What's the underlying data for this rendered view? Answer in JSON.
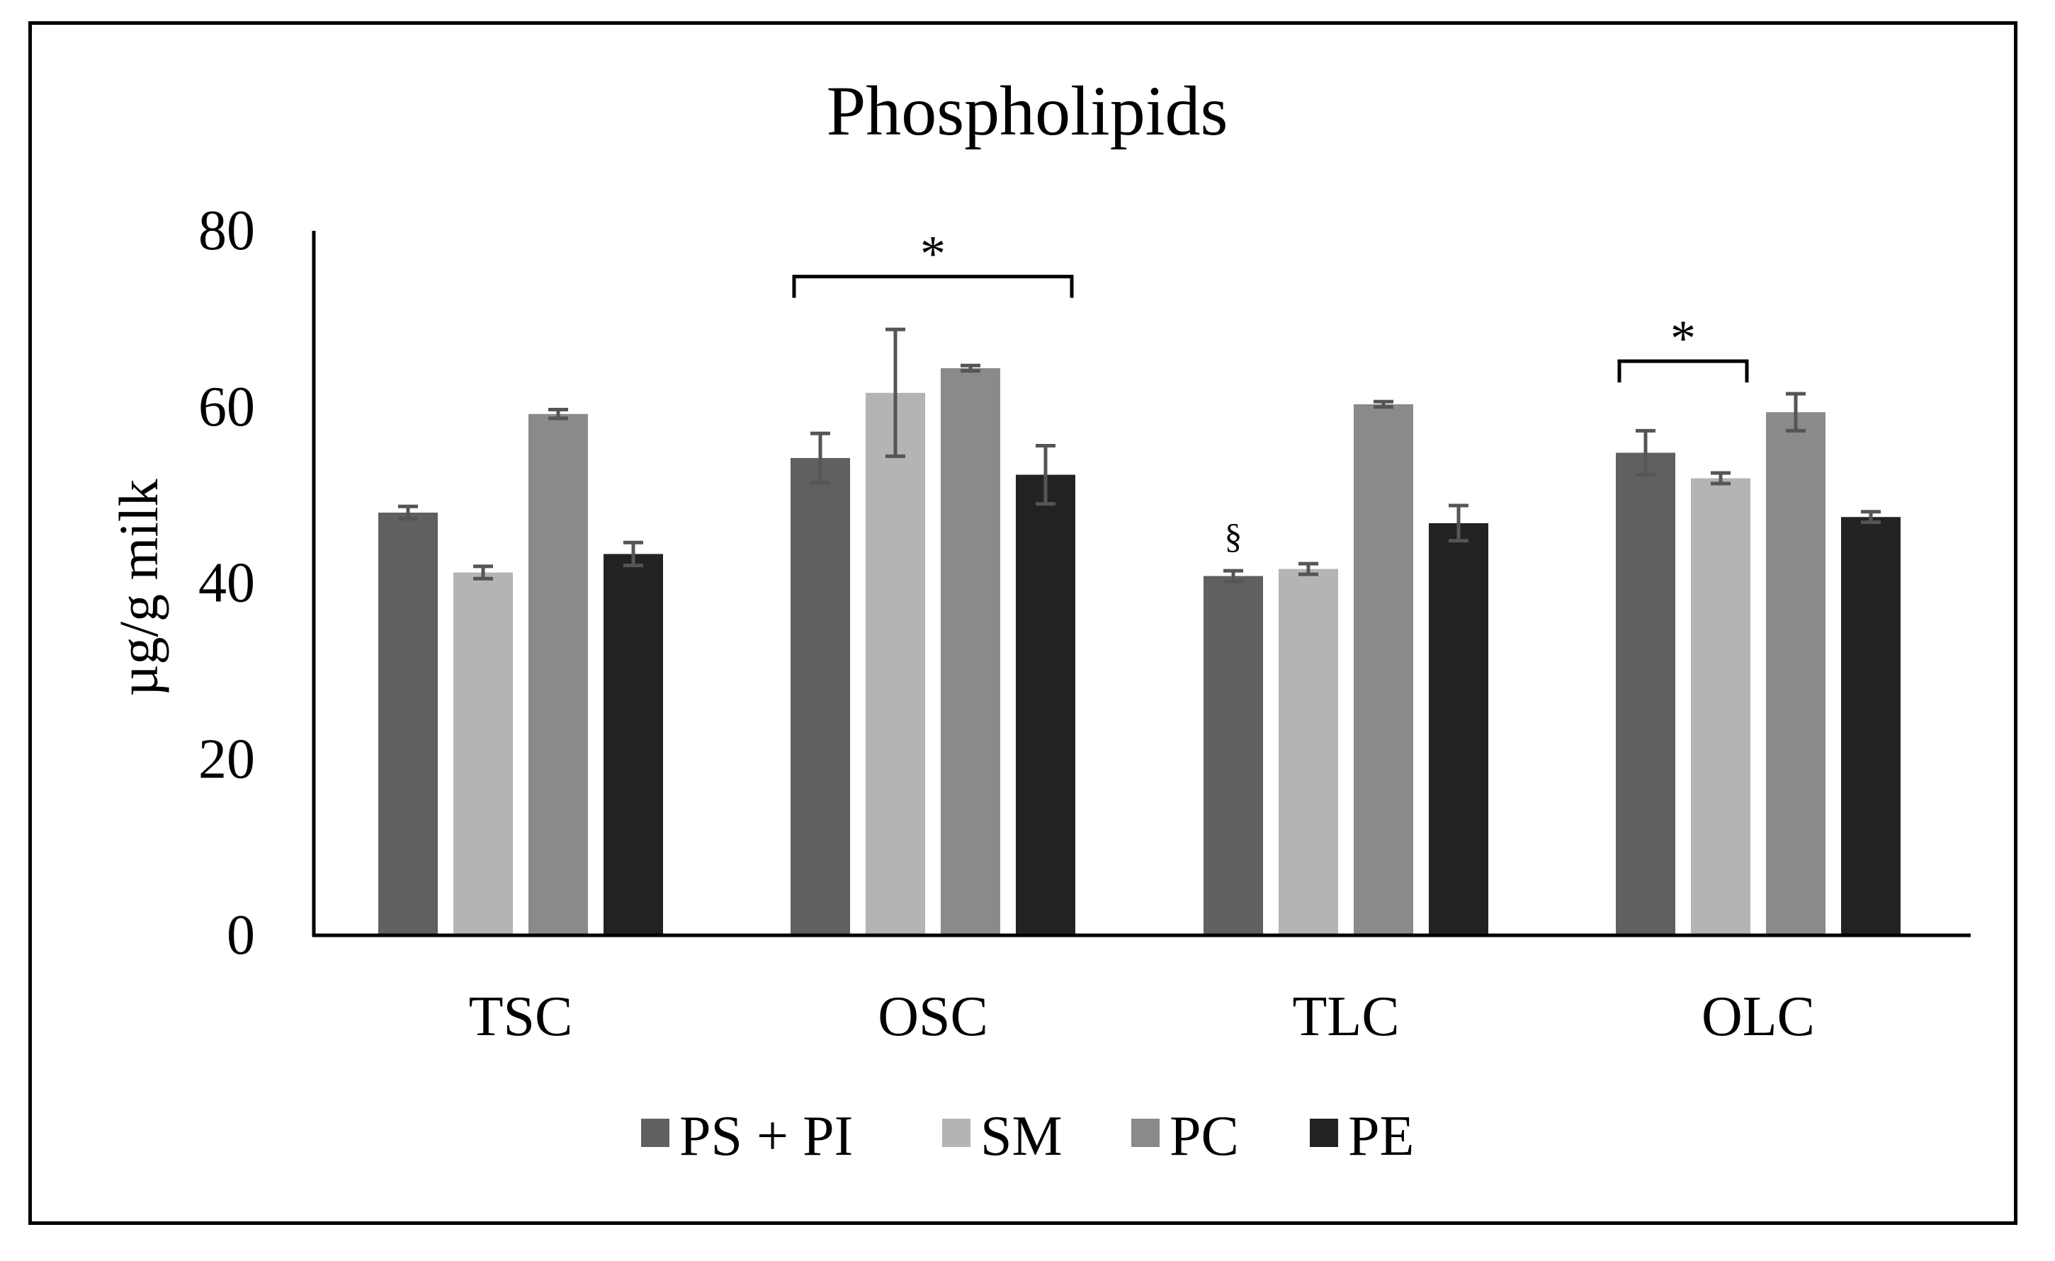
{
  "chart_data": {
    "type": "bar",
    "title": "Phospholipids",
    "xlabel": "",
    "ylabel": "µg/g milk",
    "ylim": [
      0,
      80
    ],
    "yticks": [
      0,
      20,
      40,
      60,
      80
    ],
    "grid": false,
    "legend_position": "bottom",
    "categories": [
      "TSC",
      "OSC",
      "TLC",
      "OLC"
    ],
    "series": [
      {
        "name": "PS + PI",
        "color": "#606060",
        "values": [
          48.0,
          54.2,
          40.8,
          54.8
        ],
        "errors": [
          0.7,
          2.8,
          0.6,
          2.5
        ]
      },
      {
        "name": "SM",
        "color": "#b4b4b4",
        "values": [
          41.2,
          61.6,
          41.6,
          51.9
        ],
        "errors": [
          0.7,
          7.2,
          0.6,
          0.6
        ]
      },
      {
        "name": "PC",
        "color": "#8a8a8a",
        "values": [
          59.2,
          64.4,
          60.3,
          59.4
        ],
        "errors": [
          0.5,
          0.3,
          0.3,
          2.1
        ]
      },
      {
        "name": "PE",
        "color": "#222222",
        "values": [
          43.3,
          52.3,
          46.8,
          47.5
        ],
        "errors": [
          1.3,
          3.3,
          2.0,
          0.6
        ]
      }
    ],
    "annotations": [
      {
        "type": "bracket",
        "text": "*",
        "category": "OSC",
        "from_series": 0,
        "to_series": 3,
        "y": 74.8
      },
      {
        "type": "bracket",
        "text": "*",
        "category": "OLC",
        "from_series": 0,
        "to_series": 1,
        "y": 65.2
      },
      {
        "type": "marker",
        "text": "§",
        "category": "TLC",
        "series": 0,
        "y": 45.6
      }
    ]
  }
}
